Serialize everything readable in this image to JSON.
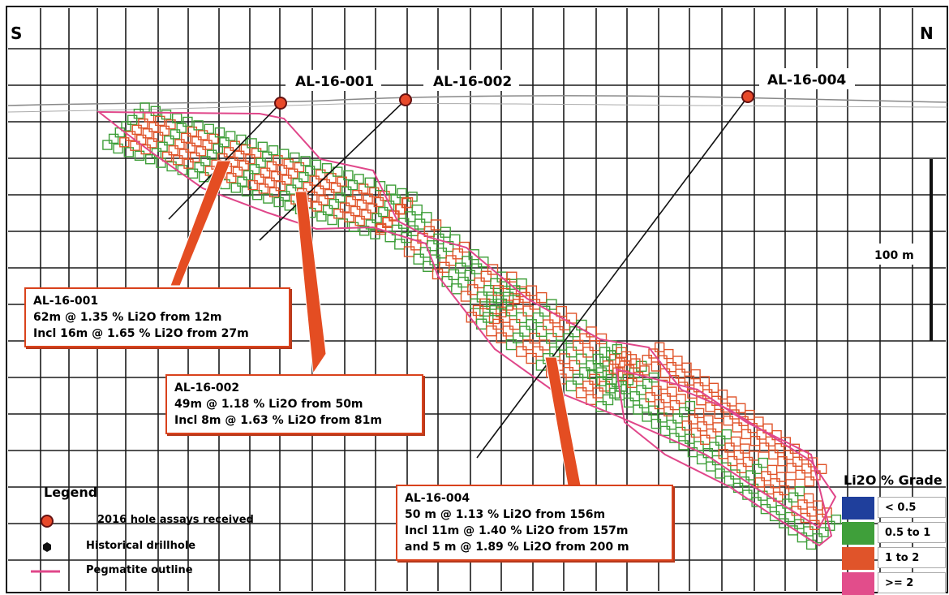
{
  "compass": {
    "left": "S",
    "right": "N"
  },
  "holes": [
    {
      "id": "AL-16-001"
    },
    {
      "id": "AL-16-002"
    },
    {
      "id": "AL-16-004"
    }
  ],
  "scale_bar": {
    "label": "100 m"
  },
  "callouts": [
    {
      "title": "AL-16-001",
      "lines": [
        "62m @ 1.35 % Li2O from 12m",
        "Incl 16m @ 1.65 % Li2O from 27m"
      ]
    },
    {
      "title": "AL-16-002",
      "lines": [
        "49m @ 1.18 % Li2O from 50m",
        "Incl 8m @ 1.63 % Li2O from 81m"
      ]
    },
    {
      "title": "AL-16-004",
      "lines": [
        "50 m @ 1.13 % Li2O from 156m",
        "Incl 11m @ 1.40 % Li2O from 157m",
        "and 5 m @ 1.89 % Li2O from 200 m"
      ]
    }
  ],
  "legend": {
    "title": "Legend",
    "items": [
      {
        "label": "2016 hole assays received",
        "icon": "red-circle-icon"
      },
      {
        "label": "Historical drillhole",
        "icon": "black-hexagon-icon"
      },
      {
        "label": "Pegmatite outline",
        "icon": "pink-line-icon"
      }
    ]
  },
  "grade_legend": {
    "title": "Li2O % Grade",
    "classes": [
      {
        "label": "< 0.5",
        "color": "#1f3f9c"
      },
      {
        "label": "0.5 to 1",
        "color": "#3f9f3a"
      },
      {
        "label": "1 to 2",
        "color": "#e0542a"
      },
      {
        "label": ">= 2",
        "color": "#e24d8b"
      }
    ]
  },
  "colors": {
    "pegmatite_outline": "#e0478a",
    "callout_border": "#d9421c",
    "hole_marker": "#e8492a",
    "assay_green": "#3f9f3a",
    "assay_red": "#e0542a"
  }
}
